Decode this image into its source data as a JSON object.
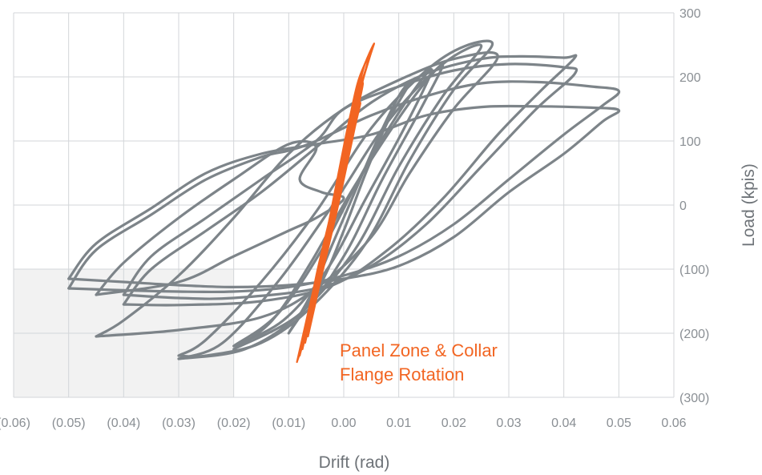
{
  "colors": {
    "grid": "#d3d6d9",
    "shade": "#f2f2f2",
    "hysteresis": "#7d8489",
    "panel_zone": "#f26522",
    "tick_text": "#8a8f94",
    "axis_text": "#6e7378"
  },
  "chart_data": {
    "type": "line",
    "title": "",
    "xlabel": "Drift (rad)",
    "ylabel": "Load (kpis)",
    "xlim": [
      -0.06,
      0.06
    ],
    "ylim": [
      -300,
      300
    ],
    "xticks": [
      -0.06,
      -0.05,
      -0.04,
      -0.03,
      -0.02,
      -0.01,
      0.0,
      0.01,
      0.02,
      0.03,
      0.04,
      0.05,
      0.06
    ],
    "xtick_labels": [
      "(0.06)",
      "(0.05)",
      "(0.04)",
      "(0.03)",
      "(0.02)",
      "(0.01)",
      "0.00",
      "0.01",
      "0.02",
      "0.03",
      "0.04",
      "0.05",
      "0.06"
    ],
    "yticks": [
      300,
      200,
      100,
      0,
      -100,
      -200,
      -300
    ],
    "ytick_labels": [
      "300",
      "200",
      "100",
      "0",
      "(100)",
      "(200)",
      "(300)"
    ],
    "grid": true,
    "shaded_region": {
      "x": [
        -0.06,
        -0.02
      ],
      "y": [
        -300,
        -100
      ]
    },
    "annotations": [
      {
        "lines": [
          "Panel Zone & Collar",
          "Flange Rotation"
        ],
        "color": "#f26522"
      }
    ],
    "series": [
      {
        "style": "hysteresis",
        "loops": [
          [
            [
              -0.05,
              -115
            ],
            [
              -0.045,
              -60
            ],
            [
              -0.035,
              -5
            ],
            [
              -0.025,
              50
            ],
            [
              -0.015,
              80
            ],
            [
              -0.005,
              95
            ],
            [
              0.005,
              110
            ],
            [
              0.015,
              140
            ],
            [
              0.025,
              153
            ],
            [
              0.035,
              154
            ],
            [
              0.045,
              152
            ],
            [
              0.05,
              148
            ],
            [
              0.047,
              130
            ],
            [
              0.04,
              80
            ],
            [
              0.03,
              20
            ],
            [
              0.02,
              -50
            ],
            [
              0.01,
              -95
            ],
            [
              0.0,
              -115
            ],
            [
              -0.01,
              -125
            ],
            [
              -0.02,
              -128
            ],
            [
              -0.03,
              -125
            ],
            [
              -0.04,
              -120
            ],
            [
              -0.05,
              -115
            ]
          ],
          [
            [
              -0.05,
              -130
            ],
            [
              -0.045,
              -70
            ],
            [
              -0.035,
              -15
            ],
            [
              -0.025,
              40
            ],
            [
              -0.015,
              75
            ],
            [
              -0.01,
              85
            ],
            [
              -0.005,
              100
            ],
            [
              0.005,
              140
            ],
            [
              0.015,
              170
            ],
            [
              0.025,
              190
            ],
            [
              0.035,
              192
            ],
            [
              0.045,
              185
            ],
            [
              0.05,
              178
            ],
            [
              0.047,
              155
            ],
            [
              0.04,
              110
            ],
            [
              0.03,
              40
            ],
            [
              0.02,
              -30
            ],
            [
              0.01,
              -80
            ],
            [
              0.0,
              -110
            ],
            [
              -0.01,
              -128
            ],
            [
              -0.02,
              -135
            ],
            [
              -0.03,
              -135
            ],
            [
              -0.04,
              -133
            ],
            [
              -0.05,
              -130
            ]
          ],
          [
            [
              -0.04,
              -140
            ],
            [
              -0.035,
              -80
            ],
            [
              -0.025,
              -20
            ],
            [
              -0.015,
              40
            ],
            [
              -0.005,
              100
            ],
            [
              0.0,
              150
            ],
            [
              0.01,
              185
            ],
            [
              0.02,
              210
            ],
            [
              0.03,
              220
            ],
            [
              0.04,
              215
            ],
            [
              0.042,
              205
            ],
            [
              0.035,
              150
            ],
            [
              0.025,
              60
            ],
            [
              0.015,
              -30
            ],
            [
              0.005,
              -95
            ],
            [
              -0.005,
              -130
            ],
            [
              -0.02,
              -145
            ],
            [
              -0.03,
              -145
            ],
            [
              -0.04,
              -140
            ]
          ],
          [
            [
              -0.04,
              -155
            ],
            [
              -0.035,
              -100
            ],
            [
              -0.025,
              -40
            ],
            [
              -0.015,
              20
            ],
            [
              -0.005,
              90
            ],
            [
              0.005,
              160
            ],
            [
              0.015,
              205
            ],
            [
              0.025,
              228
            ],
            [
              0.032,
              232
            ],
            [
              0.04,
              230
            ],
            [
              0.042,
              230
            ],
            [
              0.036,
              180
            ],
            [
              0.028,
              110
            ],
            [
              0.018,
              10
            ],
            [
              0.008,
              -70
            ],
            [
              -0.002,
              -125
            ],
            [
              -0.015,
              -150
            ],
            [
              -0.03,
              -156
            ],
            [
              -0.04,
              -155
            ]
          ],
          [
            [
              -0.045,
              -205
            ],
            [
              -0.04,
              -180
            ],
            [
              -0.03,
              -110
            ],
            [
              -0.02,
              -20
            ],
            [
              -0.01,
              80
            ],
            [
              0.0,
              150
            ],
            [
              0.01,
              195
            ],
            [
              0.02,
              228
            ],
            [
              0.028,
              232
            ],
            [
              0.02,
              150
            ],
            [
              0.012,
              50
            ],
            [
              0.005,
              -50
            ],
            [
              -0.005,
              -130
            ],
            [
              -0.015,
              -175
            ],
            [
              -0.03,
              -195
            ],
            [
              -0.045,
              -205
            ]
          ],
          [
            [
              -0.03,
              -235
            ],
            [
              -0.025,
              -210
            ],
            [
              -0.015,
              -120
            ],
            [
              -0.005,
              -10
            ],
            [
              0.005,
              120
            ],
            [
              0.015,
              210
            ],
            [
              0.022,
              248
            ],
            [
              0.027,
              250
            ],
            [
              0.02,
              180
            ],
            [
              0.012,
              70
            ],
            [
              0.004,
              -60
            ],
            [
              -0.006,
              -160
            ],
            [
              -0.015,
              -215
            ],
            [
              -0.025,
              -235
            ],
            [
              -0.03,
              -235
            ]
          ],
          [
            [
              -0.03,
              -240
            ],
            [
              -0.022,
              -215
            ],
            [
              -0.012,
              -120
            ],
            [
              -0.002,
              0
            ],
            [
              0.008,
              130
            ],
            [
              0.018,
              220
            ],
            [
              0.025,
              248
            ],
            [
              0.018,
              170
            ],
            [
              0.01,
              60
            ],
            [
              0.002,
              -70
            ],
            [
              -0.008,
              -170
            ],
            [
              -0.018,
              -225
            ],
            [
              -0.03,
              -240
            ]
          ],
          [
            [
              -0.02,
              -225
            ],
            [
              -0.013,
              -180
            ],
            [
              -0.006,
              -90
            ],
            [
              0.002,
              30
            ],
            [
              0.012,
              160
            ],
            [
              0.018,
              220
            ],
            [
              0.014,
              150
            ],
            [
              0.007,
              40
            ],
            [
              0.0,
              -80
            ],
            [
              -0.008,
              -170
            ],
            [
              -0.02,
              -225
            ]
          ],
          [
            [
              -0.02,
              -220
            ],
            [
              -0.012,
              -170
            ],
            [
              -0.004,
              -70
            ],
            [
              0.004,
              60
            ],
            [
              0.012,
              170
            ],
            [
              0.016,
              210
            ],
            [
              0.011,
              120
            ],
            [
              0.004,
              10
            ],
            [
              -0.003,
              -100
            ],
            [
              -0.011,
              -180
            ],
            [
              -0.02,
              -220
            ]
          ],
          [
            [
              -0.01,
              -200
            ],
            [
              -0.006,
              -140
            ],
            [
              -0.002,
              -60
            ],
            [
              0.002,
              20
            ],
            [
              0.006,
              100
            ],
            [
              0.01,
              170
            ],
            [
              0.012,
              190
            ],
            [
              0.008,
              130
            ],
            [
              0.004,
              50
            ],
            [
              0.0,
              -40
            ],
            [
              -0.004,
              -120
            ],
            [
              -0.01,
              -200
            ]
          ],
          [
            [
              -0.045,
              -140
            ],
            [
              -0.04,
              -90
            ],
            [
              -0.03,
              -20
            ],
            [
              -0.02,
              40
            ],
            [
              -0.01,
              95
            ],
            [
              -0.005,
              90
            ],
            [
              -0.008,
              40
            ],
            [
              -0.004,
              20
            ],
            [
              0.0,
              10
            ],
            [
              -0.005,
              -20
            ],
            [
              -0.01,
              -40
            ],
            [
              -0.02,
              -80
            ],
            [
              -0.03,
              -120
            ],
            [
              -0.045,
              -140
            ]
          ]
        ]
      },
      {
        "name": "Panel Zone & Collar Flange Rotation",
        "style": "panel-zone",
        "loops": [
          [
            [
              -0.0085,
              -245
            ],
            [
              -0.006,
              -150
            ],
            [
              -0.003,
              -40
            ],
            [
              0.0,
              80
            ],
            [
              0.0025,
              170
            ],
            [
              0.0045,
              225
            ],
            [
              0.0055,
              252
            ],
            [
              0.0035,
              210
            ],
            [
              0.0015,
              130
            ],
            [
              -0.001,
              20
            ],
            [
              -0.004,
              -90
            ],
            [
              -0.0065,
              -190
            ],
            [
              -0.0085,
              -245
            ]
          ],
          [
            [
              -0.008,
              -235
            ],
            [
              -0.0055,
              -140
            ],
            [
              -0.0025,
              -30
            ],
            [
              0.0005,
              90
            ],
            [
              0.003,
              180
            ],
            [
              0.005,
              240
            ],
            [
              0.003,
              200
            ],
            [
              0.001,
              120
            ],
            [
              -0.0015,
              10
            ],
            [
              -0.0045,
              -100
            ],
            [
              -0.007,
              -200
            ],
            [
              -0.008,
              -235
            ]
          ],
          [
            [
              -0.0075,
              -225
            ],
            [
              -0.005,
              -130
            ],
            [
              -0.002,
              -20
            ],
            [
              0.001,
              100
            ],
            [
              0.0035,
              195
            ],
            [
              0.0045,
              230
            ],
            [
              0.0025,
              190
            ],
            [
              0.0005,
              110
            ],
            [
              -0.002,
              0
            ],
            [
              -0.005,
              -110
            ],
            [
              -0.0075,
              -225
            ]
          ],
          [
            [
              -0.007,
              -215
            ],
            [
              -0.0045,
              -120
            ],
            [
              -0.0015,
              -10
            ],
            [
              0.0015,
              110
            ],
            [
              0.0035,
              190
            ],
            [
              0.0015,
              150
            ],
            [
              -0.0005,
              70
            ],
            [
              -0.003,
              -40
            ],
            [
              -0.0055,
              -150
            ],
            [
              -0.007,
              -215
            ]
          ],
          [
            [
              -0.0065,
              -205
            ],
            [
              -0.004,
              -110
            ],
            [
              -0.001,
              0
            ],
            [
              0.002,
              120
            ],
            [
              0.003,
              160
            ],
            [
              0.001,
              120
            ],
            [
              -0.0015,
              20
            ],
            [
              -0.004,
              -90
            ],
            [
              -0.0065,
              -205
            ]
          ]
        ]
      }
    ]
  }
}
